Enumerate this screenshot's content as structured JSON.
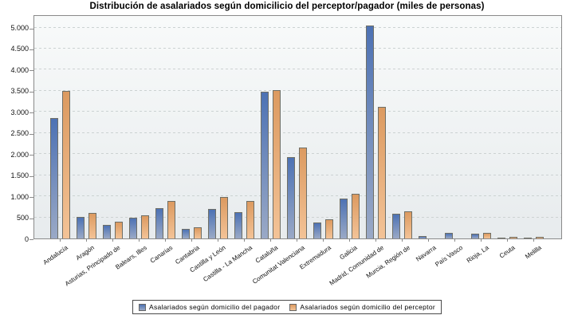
{
  "chart_data": {
    "type": "bar",
    "title": "Distribución de asalariados según domicilicio del perceptor/pagador (miles de personas)",
    "xlabel": "",
    "ylabel": "",
    "ylim": [
      0,
      5000
    ],
    "ytick_step": 500,
    "ytick_labels": [
      "0",
      "500",
      "1.000",
      "1.500",
      "2.000",
      "2.500",
      "3.000",
      "3.500",
      "4.000",
      "4.500",
      "5.000"
    ],
    "grid": "horizontal-dashed",
    "legend_position": "bottom-center",
    "categories": [
      "Andalucía",
      "Aragón",
      "Asturias, Principado de",
      "Balears, Illes",
      "Canarias",
      "Cantabria",
      "Castilla y León",
      "Castilla - La Mancha",
      "Cataluña",
      "Comunitat Valenciana",
      "Extremadura",
      "Galicia",
      "Madrid, Comunidad de",
      "Murcia, Región de",
      "Navarra",
      "País Vasco",
      "Rioja, La",
      "Ceuta",
      "Melilla"
    ],
    "series": [
      {
        "name": "Asalariados según domicilio del pagador",
        "color_top": "#4d72b4",
        "color_bottom": "#9aa9c6",
        "values": [
          2850,
          510,
          330,
          490,
          720,
          220,
          700,
          620,
          3470,
          1930,
          370,
          950,
          5050,
          580,
          50,
          130,
          110,
          25,
          25
        ]
      },
      {
        "name": "Asalariados según domicilio del perceptor",
        "color_top": "#dc9a60",
        "color_bottom": "#f3c397",
        "values": [
          3490,
          610,
          390,
          540,
          890,
          260,
          980,
          880,
          3510,
          2150,
          450,
          1060,
          3120,
          650,
          0,
          0,
          130,
          45,
          40
        ]
      }
    ]
  }
}
